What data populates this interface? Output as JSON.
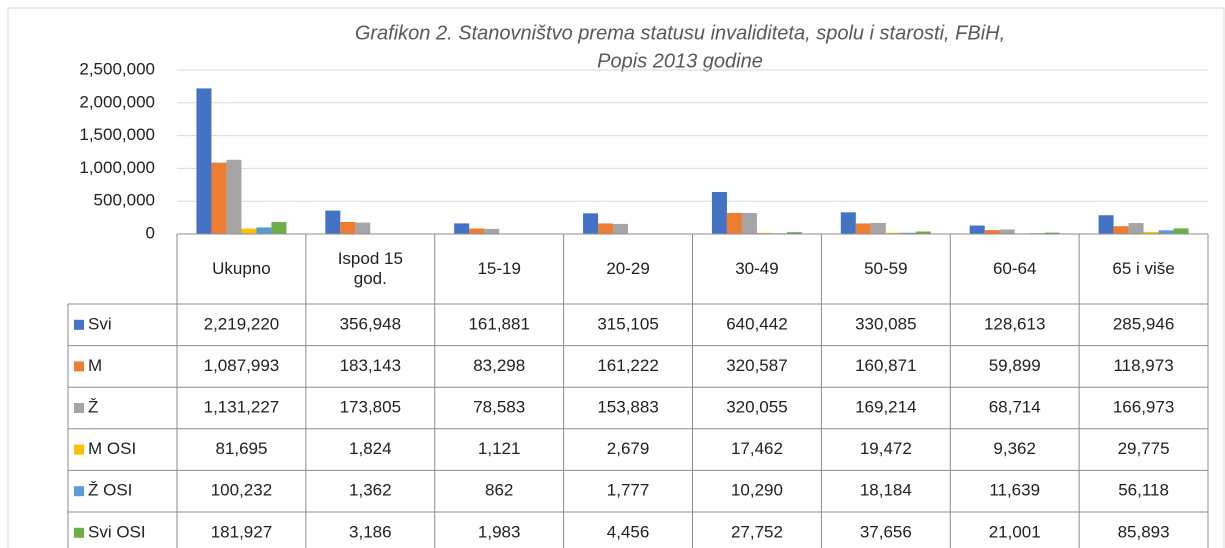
{
  "chart_data": {
    "type": "bar",
    "title": [
      "Grafikon 2. Stanovništvo prema statusu invaliditeta, spolu i starosti, FBiH,",
      "Popis 2013 godine"
    ],
    "categories": [
      "Ukupno",
      "Ispod 15 god.",
      "15-19",
      "20-29",
      "30-49",
      "50-59",
      "60-64",
      "65 i više"
    ],
    "series": [
      {
        "name": "Svi",
        "color": "#4472c4",
        "values": [
          2219220,
          356948,
          161881,
          315105,
          640442,
          330085,
          128613,
          285946
        ],
        "value_labels": [
          "2,219,220",
          "356,948",
          "161,881",
          "315,105",
          "640,442",
          "330,085",
          "128,613",
          "285,946"
        ]
      },
      {
        "name": "M",
        "color": "#ed7d31",
        "values": [
          1087993,
          183143,
          83298,
          161222,
          320587,
          160871,
          59899,
          118973
        ],
        "value_labels": [
          "1,087,993",
          "183,143",
          "83,298",
          "161,222",
          "320,587",
          "160,871",
          "59,899",
          "118,973"
        ]
      },
      {
        "name": "Ž",
        "color": "#a5a5a5",
        "values": [
          1131227,
          173805,
          78583,
          153883,
          320055,
          169214,
          68714,
          166973
        ],
        "value_labels": [
          "1,131,227",
          "173,805",
          "78,583",
          "153,883",
          "320,055",
          "169,214",
          "68,714",
          "166,973"
        ]
      },
      {
        "name": "M OSI",
        "color": "#ffc000",
        "values": [
          81695,
          1824,
          1121,
          2679,
          17462,
          19472,
          9362,
          29775
        ],
        "value_labels": [
          "81,695",
          "1,824",
          "1,121",
          "2,679",
          "17,462",
          "19,472",
          "9,362",
          "29,775"
        ]
      },
      {
        "name": "Ž OSI",
        "color": "#5b9bd5",
        "values": [
          100232,
          1362,
          862,
          1777,
          10290,
          18184,
          11639,
          56118
        ],
        "value_labels": [
          "100,232",
          "1,362",
          "862",
          "1,777",
          "10,290",
          "18,184",
          "11,639",
          "56,118"
        ]
      },
      {
        "name": "Svi OSI",
        "color": "#70ad47",
        "values": [
          181927,
          3186,
          1983,
          4456,
          27752,
          37656,
          21001,
          85893
        ],
        "value_labels": [
          "181,927",
          "3,186",
          "1,983",
          "4,456",
          "27,752",
          "37,656",
          "21,001",
          "85,893"
        ]
      }
    ],
    "ylim": [
      0,
      2500000
    ],
    "yticks": [
      0,
      {
        "value": 500000,
        "label": "500,000"
      },
      {
        "value": 1000000,
        "label": "1,000,000"
      },
      {
        "value": 1500000,
        "label": "1,500,000"
      },
      {
        "value": 2000000,
        "label": "2,000,000"
      },
      {
        "value": 2500000,
        "label": "2,500,000"
      }
    ],
    "grid": true
  }
}
